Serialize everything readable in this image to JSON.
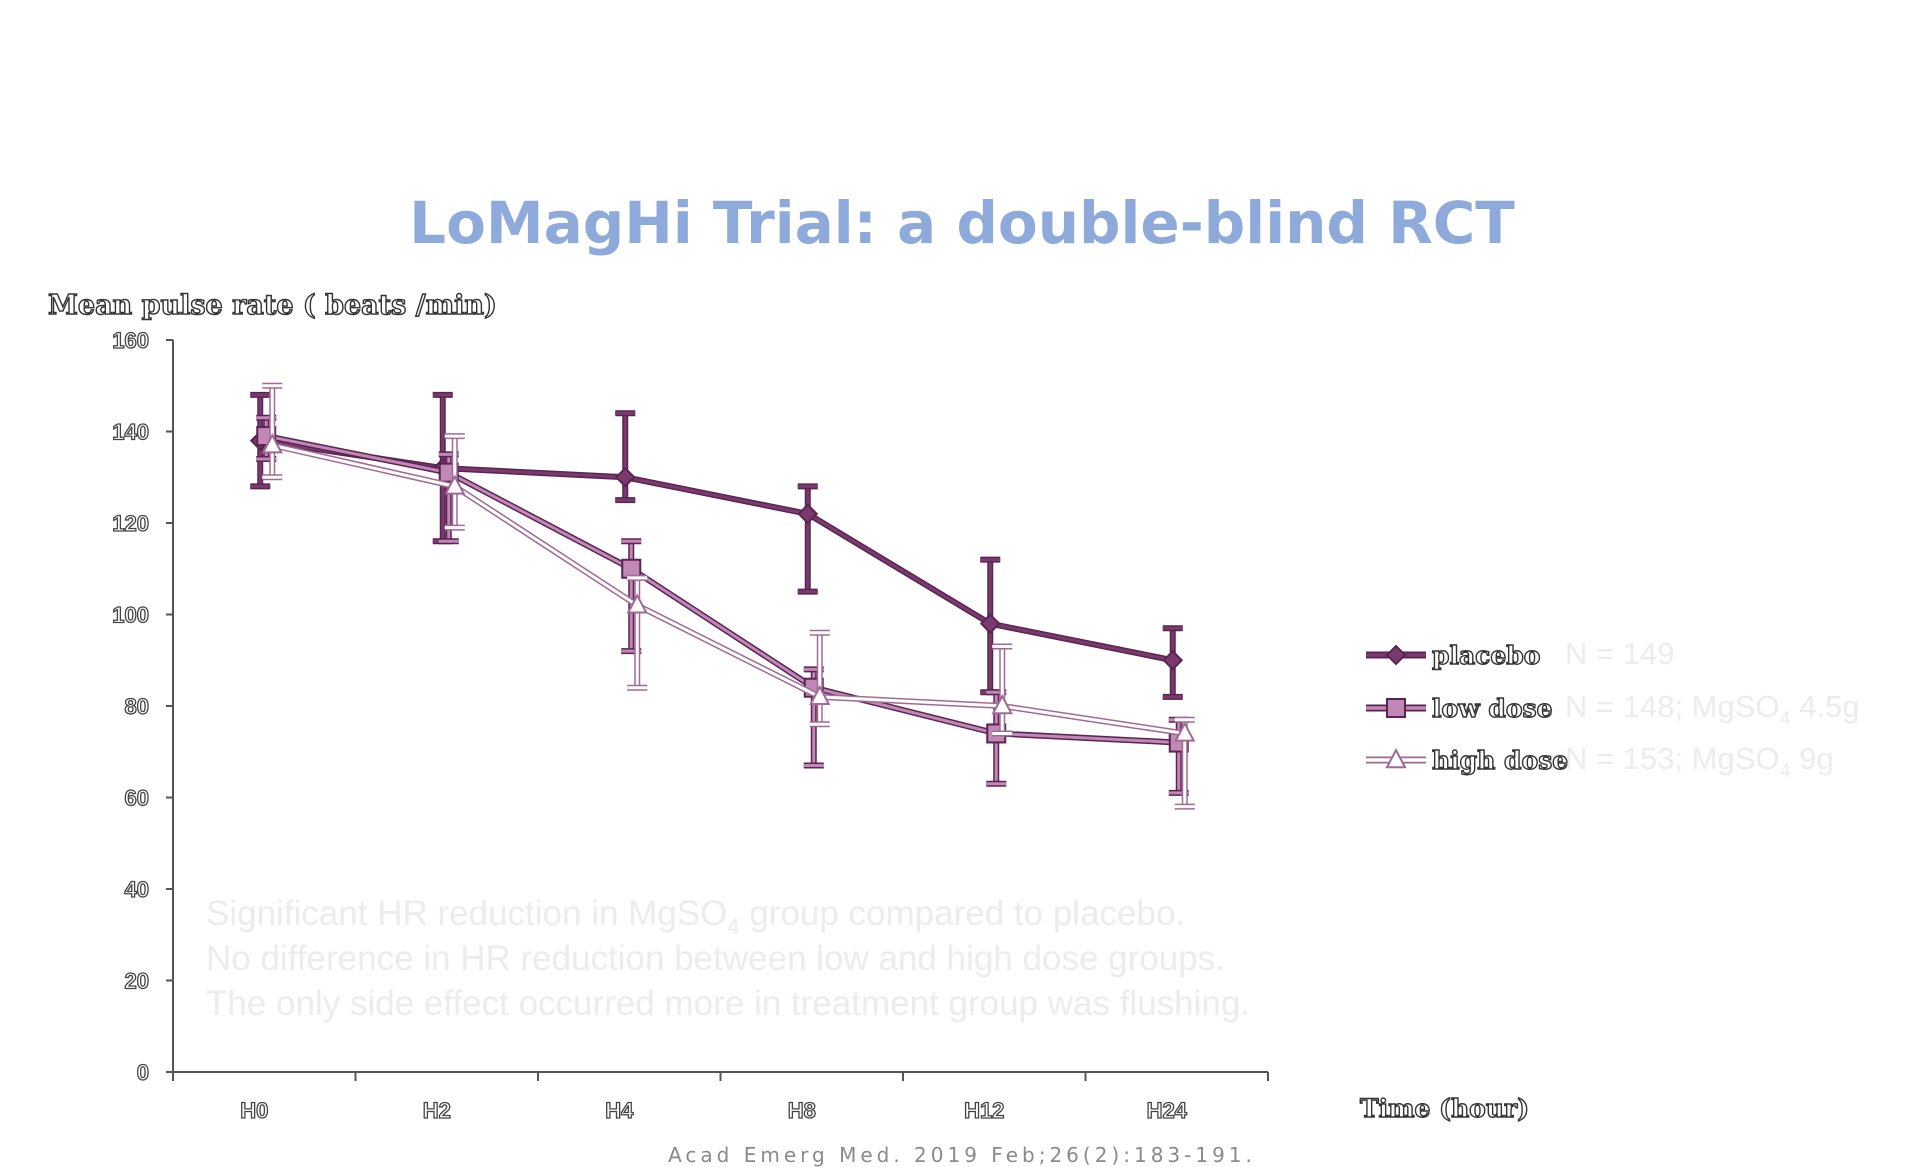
{
  "slide": {
    "title": "LoMagHi Trial: a double-blind RCT",
    "citation": "Acad Emerg Med. 2019 Feb;26(2):183-191.",
    "notes": [
      {
        "before": "Significant HR reduction in MgSO",
        "sub": "4",
        "after": " group compared to placebo."
      },
      {
        "before": "No difference in HR reduction between low and high dose groups.",
        "sub": "",
        "after": ""
      },
      {
        "before": "The only side effect occurred more in treatment group was flushing.",
        "sub": "",
        "after": ""
      }
    ],
    "title_color": "#8eaadb",
    "note_color": "#ececec"
  },
  "chart_data": {
    "type": "line",
    "ylabel": "Mean pulse rate ( beats /min)",
    "xlabel": "Time (hour)",
    "categories": [
      "H0",
      "H2",
      "H4",
      "H8",
      "H12",
      "H24"
    ],
    "ylim": [
      0,
      160
    ],
    "yticks": [
      0,
      20,
      40,
      60,
      80,
      100,
      120,
      140,
      160
    ],
    "grid": false,
    "legend_position": "right",
    "series": [
      {
        "name": "placebo",
        "marker": "diamond",
        "color": "#7a3a6e",
        "values": [
          138,
          132,
          130,
          122,
          98,
          90
        ],
        "error_low": [
          128,
          116,
          125,
          105,
          83,
          82
        ],
        "error_high": [
          148,
          148,
          144,
          128,
          112,
          97
        ],
        "n_label": "N = 149",
        "n_sub": "",
        "n_after": ""
      },
      {
        "name": "low dose",
        "marker": "square",
        "color": "#c187b5",
        "values": [
          139,
          131,
          110,
          84,
          74,
          72
        ],
        "error_low": [
          134,
          116,
          92,
          67,
          63,
          61
        ],
        "error_high": [
          143,
          135,
          116,
          88,
          83,
          77
        ],
        "n_label": "N = 148; MgSO",
        "n_sub": "4",
        "n_after": " 4.5g"
      },
      {
        "name": "high dose",
        "marker": "triangle",
        "color": "#ffffff",
        "values": [
          137,
          128,
          102,
          82,
          80,
          74
        ],
        "error_low": [
          130,
          119,
          84,
          76,
          74,
          58
        ],
        "error_high": [
          150,
          139,
          108,
          96,
          93,
          77
        ],
        "n_label": "N = 153; MgSO",
        "n_sub": "4",
        "n_after": " 9g"
      }
    ]
  }
}
